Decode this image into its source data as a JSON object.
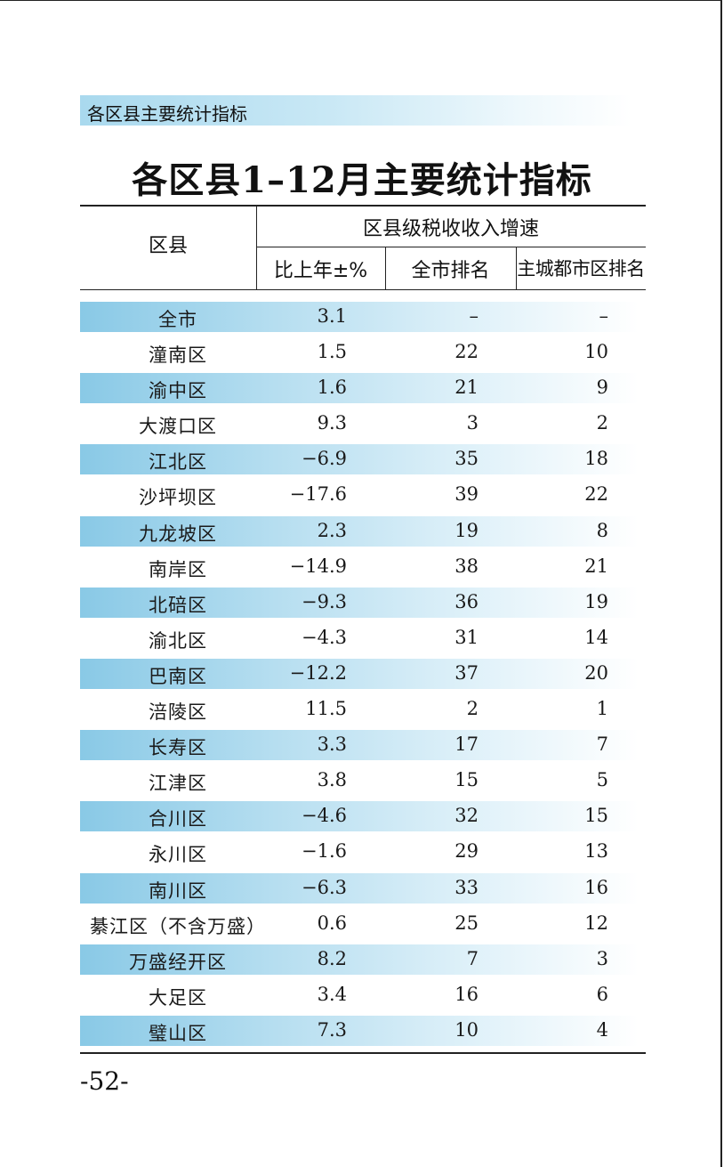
{
  "section_banner": "各区县主要统计指标",
  "title": "各区县1–12月主要统计指标",
  "table": {
    "header_county": "区县",
    "header_group": "区县级税收收入增速",
    "sub_headers": [
      "比上年±%",
      "全市排名",
      "主城都市区排名"
    ],
    "rows": [
      {
        "name": "全市",
        "pct": "3.1",
        "city_rank": "–",
        "main_rank": "–",
        "shaded": true
      },
      {
        "name": "潼南区",
        "pct": "1.5",
        "city_rank": "22",
        "main_rank": "10",
        "shaded": false
      },
      {
        "name": "渝中区",
        "pct": "1.6",
        "city_rank": "21",
        "main_rank": "9",
        "shaded": true
      },
      {
        "name": "大渡口区",
        "pct": "9.3",
        "city_rank": "3",
        "main_rank": "2",
        "shaded": false
      },
      {
        "name": "江北区",
        "pct": "−6.9",
        "city_rank": "35",
        "main_rank": "18",
        "shaded": true
      },
      {
        "name": "沙坪坝区",
        "pct": "−17.6",
        "city_rank": "39",
        "main_rank": "22",
        "shaded": false
      },
      {
        "name": "九龙坡区",
        "pct": "2.3",
        "city_rank": "19",
        "main_rank": "8",
        "shaded": true
      },
      {
        "name": "南岸区",
        "pct": "−14.9",
        "city_rank": "38",
        "main_rank": "21",
        "shaded": false
      },
      {
        "name": "北碚区",
        "pct": "−9.3",
        "city_rank": "36",
        "main_rank": "19",
        "shaded": true
      },
      {
        "name": "渝北区",
        "pct": "−4.3",
        "city_rank": "31",
        "main_rank": "14",
        "shaded": false
      },
      {
        "name": "巴南区",
        "pct": "−12.2",
        "city_rank": "37",
        "main_rank": "20",
        "shaded": true
      },
      {
        "name": "涪陵区",
        "pct": "11.5",
        "city_rank": "2",
        "main_rank": "1",
        "shaded": false
      },
      {
        "name": "长寿区",
        "pct": "3.3",
        "city_rank": "17",
        "main_rank": "7",
        "shaded": true
      },
      {
        "name": "江津区",
        "pct": "3.8",
        "city_rank": "15",
        "main_rank": "5",
        "shaded": false
      },
      {
        "name": "合川区",
        "pct": "−4.6",
        "city_rank": "32",
        "main_rank": "15",
        "shaded": true
      },
      {
        "name": "永川区",
        "pct": "−1.6",
        "city_rank": "29",
        "main_rank": "13",
        "shaded": false
      },
      {
        "name": "南川区",
        "pct": "−6.3",
        "city_rank": "33",
        "main_rank": "16",
        "shaded": true
      },
      {
        "name": "綦江区（不含万盛）",
        "pct": "0.6",
        "city_rank": "25",
        "main_rank": "12",
        "shaded": false
      },
      {
        "name": "万盛经开区",
        "pct": "8.2",
        "city_rank": "7",
        "main_rank": "3",
        "shaded": true
      },
      {
        "name": "大足区",
        "pct": "3.4",
        "city_rank": "16",
        "main_rank": "6",
        "shaded": false
      },
      {
        "name": "璧山区",
        "pct": "7.3",
        "city_rank": "10",
        "main_rank": "4",
        "shaded": true
      }
    ]
  },
  "page_number": "-52-"
}
